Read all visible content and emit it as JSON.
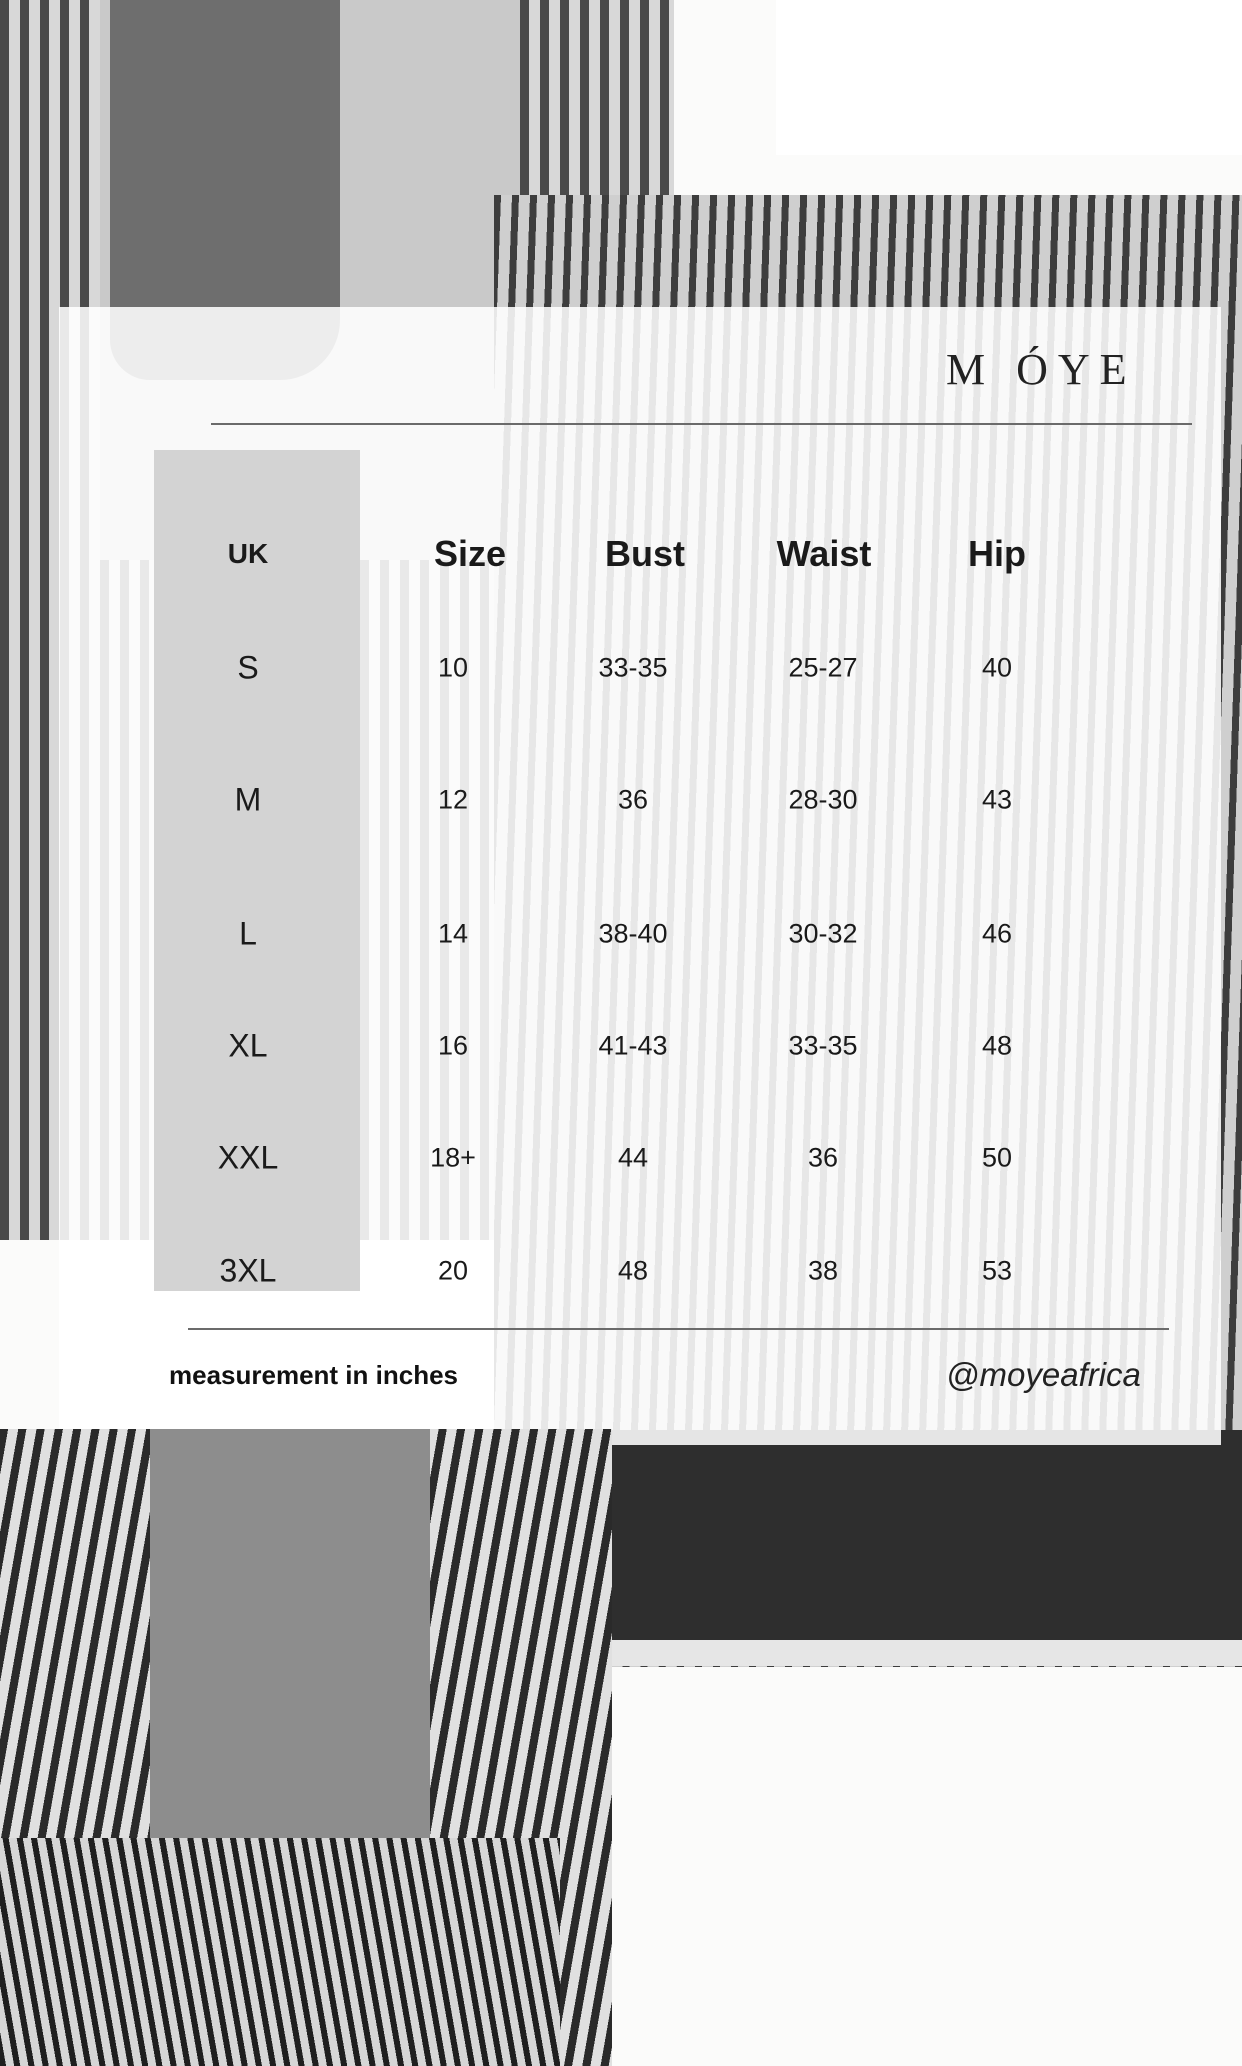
{
  "brand": "M ÓYE",
  "headers": {
    "uk": "UK",
    "size": "Size",
    "bust": "Bust",
    "waist": "Waist",
    "hip": "Hip"
  },
  "rows": [
    {
      "uk": "S",
      "size": "10",
      "bust": "33-35",
      "waist": "25-27",
      "hip": "40"
    },
    {
      "uk": "M",
      "size": "12",
      "bust": "36",
      "waist": "28-30",
      "hip": "43"
    },
    {
      "uk": "L",
      "size": "14",
      "bust": "38-40",
      "waist": "30-32",
      "hip": "46"
    },
    {
      "uk": "XL",
      "size": "16",
      "bust": "41-43",
      "waist": "33-35",
      "hip": "48"
    },
    {
      "uk": "XXL",
      "size": "18+",
      "bust": "44",
      "waist": "36",
      "hip": "50"
    },
    {
      "uk": "3XL",
      "size": "20",
      "bust": "48",
      "waist": "38",
      "hip": "53"
    }
  ],
  "footer": {
    "note": "measurement in inches",
    "handle": "@moyeafrica"
  }
}
